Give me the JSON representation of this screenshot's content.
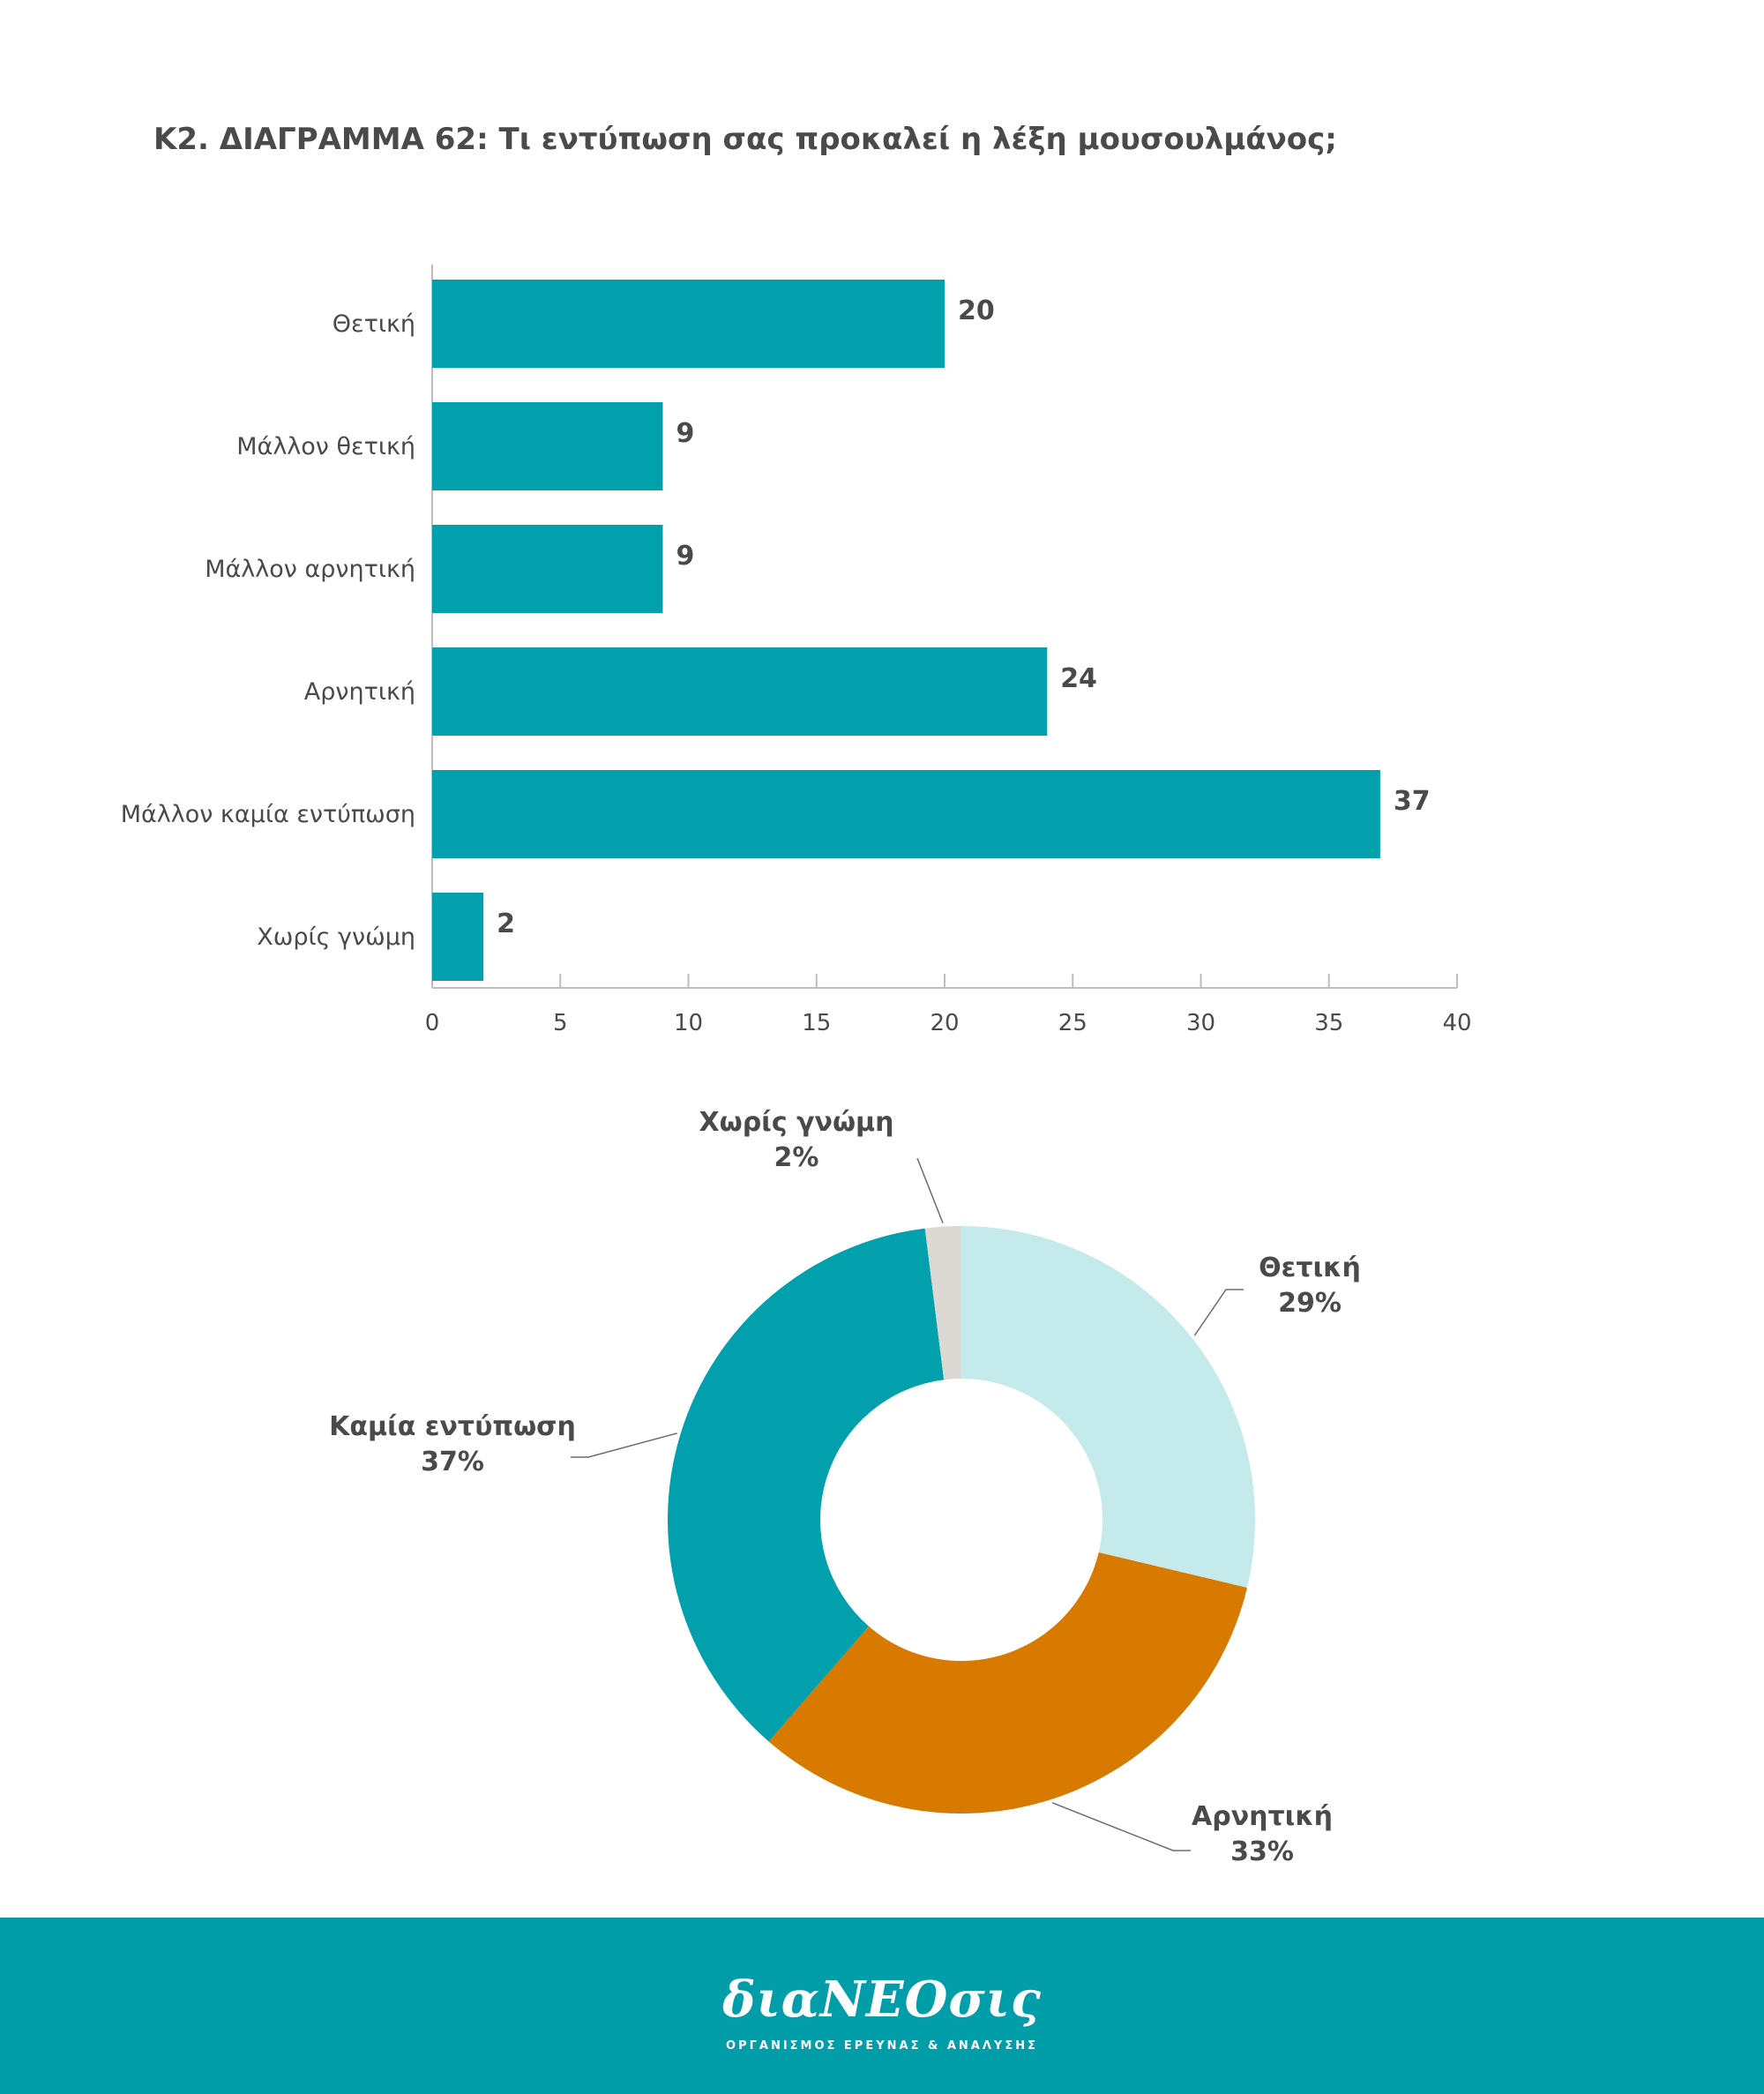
{
  "title": "Κ2. ΔΙΑΓΡΑΜΜΑ 62: Τι εντύπωση σας προκαλεί η λέξη μουσουλμάνος;",
  "chart_data": [
    {
      "type": "bar",
      "orientation": "horizontal",
      "categories": [
        "Θετική",
        "Μάλλον θετική",
        "Μάλλον αρνητική",
        "Αρνητική",
        "Μάλλον καμία εντύπωση",
        "Χωρίς γνώμη"
      ],
      "values": [
        20,
        9,
        9,
        24,
        37,
        2
      ],
      "xlim": [
        0,
        40
      ],
      "xticks": [
        0,
        5,
        10,
        15,
        20,
        25,
        30,
        35,
        40
      ],
      "color": "#01a0ac",
      "grid": false
    },
    {
      "type": "pie",
      "donut": true,
      "slices": [
        {
          "label": "Θετική",
          "value": 29,
          "value_label": "29%",
          "color": "#c5eaec"
        },
        {
          "label": "Αρνητική",
          "value": 33,
          "value_label": "33%",
          "color": "#d87a00"
        },
        {
          "label": "Καμία εντύπωση",
          "value": 37,
          "value_label": "37%",
          "color": "#01a0ac"
        },
        {
          "label": "Χωρίς γνώμη",
          "value": 2,
          "value_label": "2%",
          "color": "#dcd8d4"
        }
      ]
    }
  ],
  "footer": {
    "logo_text": "διαΝΕΟσις",
    "tagline": "ΟΡΓΑΝΙΣΜΟΣ ΕΡΕΥΝΑΣ & ΑΝΑΛΥΣΗΣ",
    "background": "#019da9"
  }
}
